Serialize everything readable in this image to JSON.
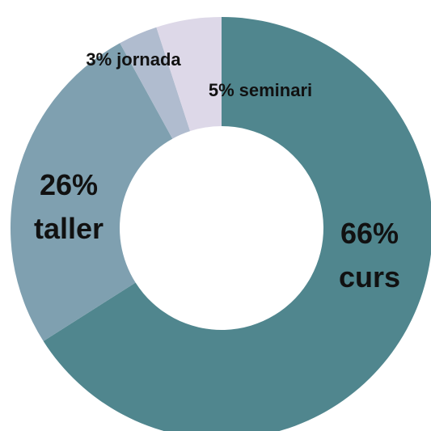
{
  "chart_data": {
    "type": "donut",
    "categories": [
      "curs",
      "taller",
      "jornada",
      "seminari"
    ],
    "values": [
      66,
      26,
      3,
      5
    ],
    "value_labels": [
      "66%",
      "26%",
      "3%",
      "5%"
    ],
    "colors": [
      "#50868e",
      "#7fa0b0",
      "#b0bccf",
      "#ddd8e8"
    ]
  }
}
